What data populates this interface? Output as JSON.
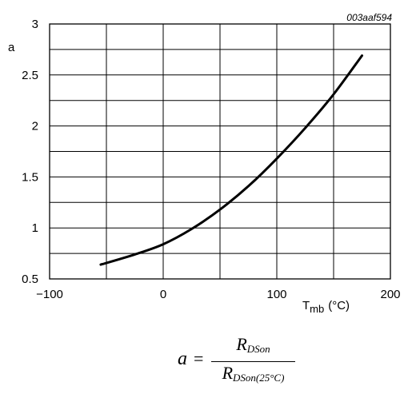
{
  "chart_data": {
    "type": "line",
    "identifier": "003aaf594",
    "ylabel": "a",
    "xlabel_main": "T",
    "xlabel_sub": "mb",
    "xlabel_unit": "(°C)",
    "xlim": [
      -100,
      200
    ],
    "ylim": [
      0.5,
      3
    ],
    "x_ticks": [
      -100,
      0,
      100,
      200
    ],
    "x_tick_labels": [
      "−100",
      "0",
      "100",
      "200"
    ],
    "y_ticks": [
      0.5,
      1,
      1.5,
      2,
      2.5,
      3
    ],
    "y_tick_labels": [
      "0.5",
      "1",
      "1.5",
      "2",
      "2.5",
      "3"
    ],
    "grid": true,
    "series": [
      {
        "x": [
          -55,
          -25,
          0,
          25,
          50,
          75,
          100,
          125,
          150,
          175
        ],
        "y": [
          0.64,
          0.74,
          0.84,
          0.99,
          1.18,
          1.41,
          1.68,
          1.98,
          2.31,
          2.69
        ]
      }
    ]
  },
  "formula": {
    "lhs": "a",
    "eq": "=",
    "num_main": "R",
    "num_sub": "DSon",
    "den_main": "R",
    "den_sub": "DSon(25°C)"
  }
}
